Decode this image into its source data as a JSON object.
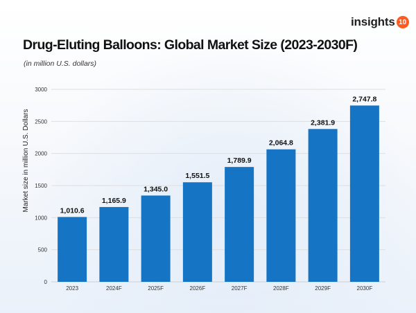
{
  "brand": {
    "name": "insights",
    "badge": "10",
    "badge_color": "#ff5a1f"
  },
  "chart_data": {
    "type": "bar",
    "title": "Drug-Eluting Balloons: Global Market Size (2023-2030F)",
    "subtitle": "(in million U.S. dollars)",
    "xlabel": "",
    "ylabel": "Market size in million U.S. Dollars",
    "categories": [
      "2023",
      "2024F",
      "2025F",
      "2026F",
      "2027F",
      "2028F",
      "2029F",
      "2030F"
    ],
    "values": [
      1010.6,
      1165.9,
      1345.0,
      1551.5,
      1789.9,
      2064.8,
      2381.9,
      2747.8
    ],
    "value_labels": [
      "1,010.6",
      "1,165.9",
      "1,345.0",
      "1,551.5",
      "1,789.9",
      "2,064.8",
      "2,381.9",
      "2,747.8"
    ],
    "ylim": [
      0,
      3000
    ],
    "yticks": [
      0,
      500,
      1000,
      1500,
      2000,
      2500,
      3000
    ],
    "grid": true,
    "bar_color": "#1574c4"
  }
}
